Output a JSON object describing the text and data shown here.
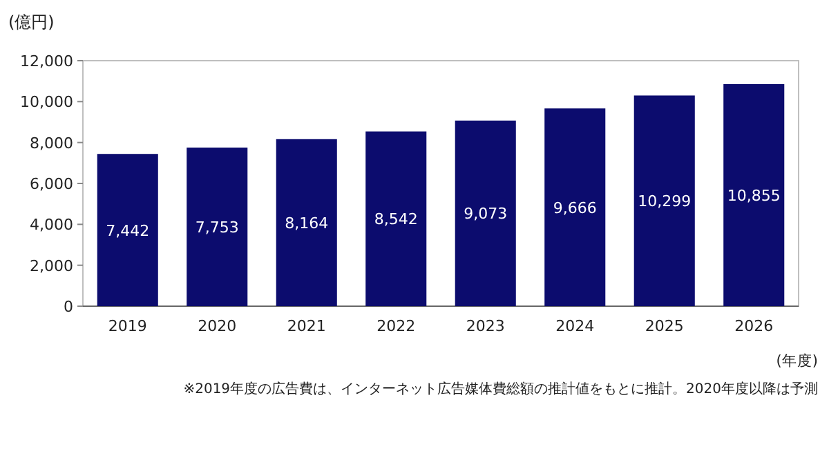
{
  "chart_data": {
    "type": "bar",
    "ylabel": "(億円)",
    "xlabel": "(年度)",
    "categories": [
      "2019",
      "2020",
      "2021",
      "2022",
      "2023",
      "2024",
      "2025",
      "2026"
    ],
    "values": [
      7442,
      7753,
      8164,
      8542,
      9073,
      9666,
      10299,
      10855
    ],
    "value_labels": [
      "7,442",
      "7,753",
      "8,164",
      "8,542",
      "9,073",
      "9,666",
      "10,299",
      "10,855"
    ],
    "color": "#0c0c6e",
    "ylim": [
      0,
      12000
    ],
    "yticks": [
      {
        "value": 0,
        "label": "0"
      },
      {
        "value": 2000,
        "label": "2,000"
      },
      {
        "value": 4000,
        "label": "4,000"
      },
      {
        "value": 6000,
        "label": "6,000"
      },
      {
        "value": 8000,
        "label": "8,000"
      },
      {
        "value": 10000,
        "label": "10,000"
      },
      {
        "value": 12000,
        "label": "12,000"
      }
    ],
    "grid": false,
    "annotations": [
      "※2019年度の広告費は、インターネット広告媒体費総額の推計値をもとに推計。2020年度以降は予測"
    ]
  }
}
